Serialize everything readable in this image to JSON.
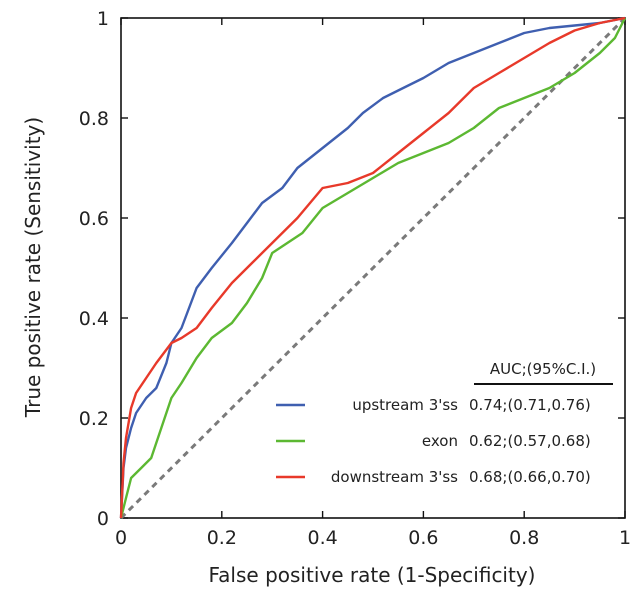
{
  "chart_data": {
    "type": "line",
    "xlabel": "False positive rate (1-Specificity)",
    "ylabel": "True positive rate (Sensitivity)",
    "xlim": [
      0,
      1
    ],
    "ylim": [
      0,
      1
    ],
    "x_ticks": [
      "0",
      "0.2",
      "0.4",
      "0.6",
      "0.8",
      "1"
    ],
    "y_ticks": [
      "0",
      "0.2",
      "0.4",
      "0.6",
      "0.8",
      "1"
    ],
    "grid": false,
    "legend_position": "bottom-right",
    "legend_header": "AUC;(95%C.I.)",
    "series": [
      {
        "name": "upstream 3'ss",
        "auc_label": "0.74;(0.71,0.76)",
        "color": "#3f5fb0",
        "x": [
          0,
          0.005,
          0.01,
          0.02,
          0.03,
          0.05,
          0.07,
          0.09,
          0.1,
          0.12,
          0.15,
          0.18,
          0.22,
          0.25,
          0.28,
          0.32,
          0.35,
          0.4,
          0.45,
          0.48,
          0.52,
          0.56,
          0.6,
          0.65,
          0.7,
          0.75,
          0.8,
          0.85,
          0.9,
          0.95,
          1.0
        ],
        "y": [
          0,
          0.1,
          0.14,
          0.18,
          0.21,
          0.24,
          0.26,
          0.31,
          0.35,
          0.38,
          0.46,
          0.5,
          0.55,
          0.59,
          0.63,
          0.66,
          0.7,
          0.74,
          0.78,
          0.81,
          0.84,
          0.86,
          0.88,
          0.91,
          0.93,
          0.95,
          0.97,
          0.98,
          0.985,
          0.99,
          1.0
        ]
      },
      {
        "name": "exon",
        "auc_label": "0.62;(0.57,0.68)",
        "color": "#5cb832",
        "x": [
          0,
          0.005,
          0.01,
          0.02,
          0.04,
          0.06,
          0.08,
          0.1,
          0.12,
          0.15,
          0.18,
          0.22,
          0.25,
          0.28,
          0.3,
          0.33,
          0.36,
          0.4,
          0.45,
          0.5,
          0.55,
          0.6,
          0.65,
          0.7,
          0.75,
          0.8,
          0.85,
          0.9,
          0.95,
          0.98,
          1.0
        ],
        "y": [
          0,
          0.02,
          0.04,
          0.08,
          0.1,
          0.12,
          0.18,
          0.24,
          0.27,
          0.32,
          0.36,
          0.39,
          0.43,
          0.48,
          0.53,
          0.55,
          0.57,
          0.62,
          0.65,
          0.68,
          0.71,
          0.73,
          0.75,
          0.78,
          0.82,
          0.84,
          0.86,
          0.89,
          0.93,
          0.96,
          1.0
        ]
      },
      {
        "name": "downstream 3'ss",
        "auc_label": "0.68;(0.66,0.70)",
        "color": "#e8392a",
        "x": [
          0,
          0.005,
          0.01,
          0.02,
          0.03,
          0.05,
          0.07,
          0.1,
          0.12,
          0.15,
          0.18,
          0.22,
          0.26,
          0.3,
          0.35,
          0.4,
          0.45,
          0.5,
          0.55,
          0.6,
          0.65,
          0.7,
          0.75,
          0.8,
          0.85,
          0.9,
          0.95,
          1.0
        ],
        "y": [
          0,
          0.11,
          0.16,
          0.22,
          0.25,
          0.28,
          0.31,
          0.35,
          0.36,
          0.38,
          0.42,
          0.47,
          0.51,
          0.55,
          0.6,
          0.66,
          0.67,
          0.69,
          0.73,
          0.77,
          0.81,
          0.86,
          0.89,
          0.92,
          0.95,
          0.975,
          0.99,
          1.0
        ]
      }
    ]
  }
}
